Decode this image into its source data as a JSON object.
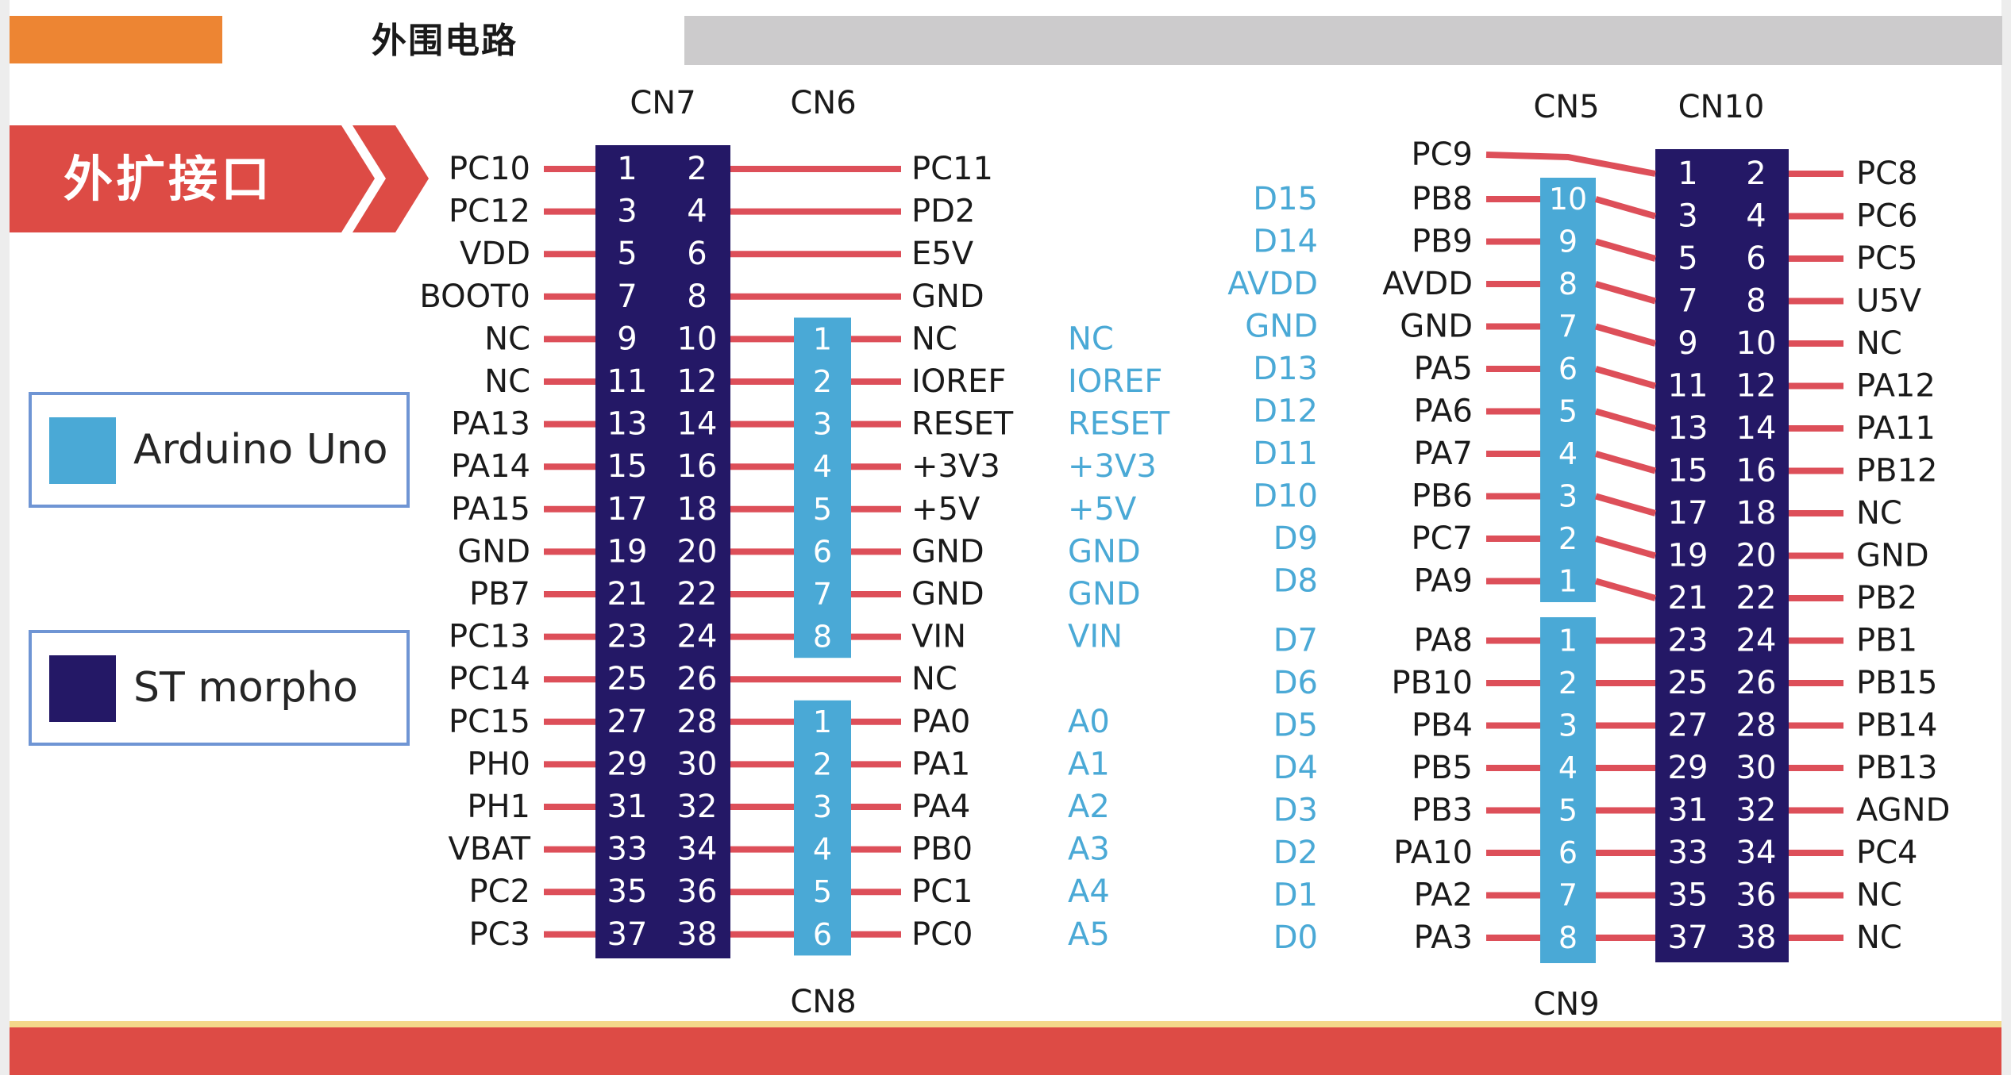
{
  "header": {
    "title": "外围电路"
  },
  "banner": {
    "label": "外扩接口"
  },
  "legend": {
    "items": [
      {
        "label": "Arduino Uno",
        "color": "#4aa9d6"
      },
      {
        "label": "ST morpho",
        "color": "#241866"
      }
    ]
  },
  "colors": {
    "morpho": "#241866",
    "arduino": "#4aa9d6",
    "wire": "#dd4f59",
    "arduino_text": "#4aa9d6",
    "pin_text": "#1a1a1a"
  },
  "connectors": {
    "cn7": {
      "name": "CN7",
      "left_labels": [
        "PC10",
        "PC12",
        "VDD",
        "BOOT0",
        "NC",
        "NC",
        "PA13",
        "PA14",
        "PA15",
        "GND",
        "PB7",
        "PC13",
        "PC14",
        "PC15",
        "PH0",
        "PH1",
        "VBAT",
        "PC2",
        "PC3"
      ],
      "right_labels": [
        "PC11",
        "PD2",
        "E5V",
        "GND",
        "NC",
        "IOREF",
        "RESET",
        "+3V3",
        "+5V",
        "GND",
        "GND",
        "VIN",
        "NC",
        "PA0",
        "PA1",
        "PA4",
        "PB0",
        "PC1",
        "PC0"
      ]
    },
    "cn6": {
      "name": "CN6",
      "pins": [
        "1",
        "2",
        "3",
        "4",
        "5",
        "6",
        "7",
        "8"
      ]
    },
    "cn8": {
      "name": "CN8",
      "pins": [
        "1",
        "2",
        "3",
        "4",
        "5",
        "6"
      ]
    },
    "cn10": {
      "name": "CN10",
      "left_labels": [
        "PC9",
        "PB8",
        "PB9",
        "AVDD",
        "GND",
        "PA5",
        "PA6",
        "PA7",
        "PB6",
        "PC7",
        "PA9",
        "PA8",
        "PB10",
        "PB4",
        "PB5",
        "PB3",
        "PA10",
        "PA2",
        "PA3"
      ],
      "right_labels": [
        "PC8",
        "PC6",
        "PC5",
        "U5V",
        "NC",
        "PA12",
        "PA11",
        "PB12",
        "NC",
        "GND",
        "PB2",
        "PB1",
        "PB15",
        "PB14",
        "PB13",
        "AGND",
        "PC4",
        "NC",
        "NC"
      ]
    },
    "cn5": {
      "name": "CN5",
      "pins": [
        "10",
        "9",
        "8",
        "7",
        "6",
        "5",
        "4",
        "3",
        "2",
        "1"
      ]
    },
    "cn9": {
      "name": "CN9",
      "pins": [
        "1",
        "2",
        "3",
        "4",
        "5",
        "6",
        "7",
        "8"
      ]
    }
  },
  "arduino_labels": {
    "cn6": [
      "NC",
      "IOREF",
      "RESET",
      "+3V3",
      "+5V",
      "GND",
      "GND",
      "VIN"
    ],
    "cn8": [
      "A0",
      "A1",
      "A2",
      "A3",
      "A4",
      "A5"
    ],
    "cn5": [
      "D15",
      "D14",
      "AVDD",
      "GND",
      "D13",
      "D12",
      "D11",
      "D10",
      "D9",
      "D8"
    ],
    "cn9": [
      "D7",
      "D6",
      "D5",
      "D4",
      "D3",
      "D2",
      "D1",
      "D0"
    ]
  }
}
